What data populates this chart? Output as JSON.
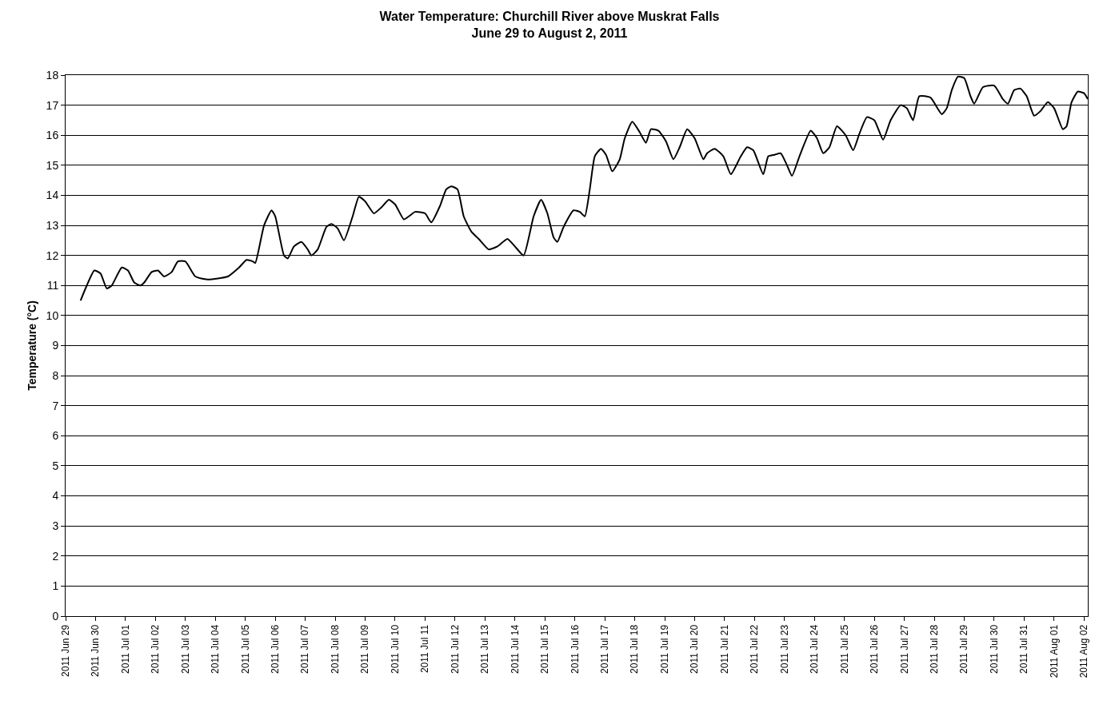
{
  "chart_data": {
    "type": "line",
    "title": "Water Temperature: Churchill River above Muskrat Falls",
    "subtitle": "June 29 to August 2, 2011",
    "ylabel": "Temperature (°C)",
    "x": [
      "2011-06-29T12:00",
      "2011-06-29T17:00",
      "2011-06-29T23:00",
      "2011-06-30T04:00",
      "2011-06-30T09:00",
      "2011-06-30T13:00",
      "2011-06-30T21:00",
      "2011-07-01T02:00",
      "2011-07-01T07:00",
      "2011-07-01T12:00",
      "2011-07-01T15:00",
      "2011-07-01T21:00",
      "2011-07-02T02:00",
      "2011-07-02T07:00",
      "2011-07-02T13:00",
      "2011-07-02T18:00",
      "2011-07-03T00:00",
      "2011-07-03T08:00",
      "2011-07-03T18:00",
      "2011-07-04T10:00",
      "2011-07-04T19:00",
      "2011-07-05T01:00",
      "2011-07-05T06:00",
      "2011-07-05T08:00",
      "2011-07-05T15:00",
      "2011-07-05T21:00",
      "2011-07-06T00:00",
      "2011-07-06T07:00",
      "2011-07-06T10:00",
      "2011-07-06T15:00",
      "2011-07-06T21:00",
      "2011-07-07T02:00",
      "2011-07-07T05:00",
      "2011-07-07T10:00",
      "2011-07-07T17:00",
      "2011-07-07T21:00",
      "2011-07-08T02:00",
      "2011-07-08T07:00",
      "2011-07-08T14:00",
      "2011-07-08T19:00",
      "2011-07-09T00:00",
      "2011-07-09T07:00",
      "2011-07-09T13:00",
      "2011-07-09T19:00",
      "2011-07-10T00:00",
      "2011-07-10T07:00",
      "2011-07-10T11:00",
      "2011-07-10T16:00",
      "2011-07-11T00:00",
      "2011-07-11T05:00",
      "2011-07-11T12:00",
      "2011-07-11T17:00",
      "2011-07-11T21:00",
      "2011-07-12T02:00",
      "2011-07-12T07:00",
      "2011-07-12T13:00",
      "2011-07-12T19:00",
      "2011-07-13T03:00",
      "2011-07-13T10:00",
      "2011-07-13T18:00",
      "2011-07-14T00:00",
      "2011-07-14T07:00",
      "2011-07-14T15:00",
      "2011-07-14T21:00",
      "2011-07-15T02:00",
      "2011-07-15T07:00",
      "2011-07-15T10:00",
      "2011-07-15T15:00",
      "2011-07-15T23:00",
      "2011-07-16T04:00",
      "2011-07-16T08:00",
      "2011-07-16T12:00",
      "2011-07-16T16:00",
      "2011-07-16T21:00",
      "2011-07-17T01:00",
      "2011-07-17T06:00",
      "2011-07-17T12:00",
      "2011-07-17T16:00",
      "2011-07-17T22:00",
      "2011-07-18T04:00",
      "2011-07-18T09:00",
      "2011-07-18T13:00",
      "2011-07-18T19:00",
      "2011-07-19T01:00",
      "2011-07-19T07:00",
      "2011-07-19T12:00",
      "2011-07-19T18:00",
      "2011-07-20T00:00",
      "2011-07-20T07:00",
      "2011-07-20T10:00",
      "2011-07-20T16:00",
      "2011-07-20T23:00",
      "2011-07-21T05:00",
      "2011-07-21T13:00",
      "2011-07-21T18:00",
      "2011-07-21T23:00",
      "2011-07-22T07:00",
      "2011-07-22T11:00",
      "2011-07-22T16:00",
      "2011-07-22T21:00",
      "2011-07-23T02:00",
      "2011-07-23T06:00",
      "2011-07-23T12:00",
      "2011-07-23T21:00",
      "2011-07-24T02:00",
      "2011-07-24T07:00",
      "2011-07-24T12:00",
      "2011-07-24T18:00",
      "2011-07-25T01:00",
      "2011-07-25T07:00",
      "2011-07-25T12:00",
      "2011-07-25T18:00",
      "2011-07-26T00:00",
      "2011-07-26T07:00",
      "2011-07-26T13:00",
      "2011-07-26T21:00",
      "2011-07-27T02:00",
      "2011-07-27T07:00",
      "2011-07-27T12:00",
      "2011-07-27T21:00",
      "2011-07-28T06:00",
      "2011-07-28T10:00",
      "2011-07-28T14:00",
      "2011-07-28T19:00",
      "2011-07-29T00:00",
      "2011-07-29T05:00",
      "2011-07-29T08:00",
      "2011-07-29T15:00",
      "2011-07-30T00:00",
      "2011-07-30T07:00",
      "2011-07-30T11:00",
      "2011-07-30T16:00",
      "2011-07-30T21:00",
      "2011-07-31T02:00",
      "2011-07-31T08:00",
      "2011-07-31T13:00",
      "2011-07-31T19:00",
      "2011-08-01T00:00",
      "2011-08-01T07:00",
      "2011-08-01T10:00",
      "2011-08-01T14:00",
      "2011-08-01T19:00",
      "2011-08-02T00:00",
      "2011-08-02T03:00"
    ],
    "series": [
      {
        "color": "#000000",
        "values": [
          10.5,
          11.0,
          11.5,
          11.4,
          10.9,
          11.0,
          11.6,
          11.5,
          11.1,
          11.0,
          11.1,
          11.45,
          11.5,
          11.3,
          11.45,
          11.8,
          11.8,
          11.3,
          11.2,
          11.3,
          11.6,
          11.85,
          11.8,
          11.75,
          13.0,
          13.5,
          13.3,
          12.0,
          11.9,
          12.3,
          12.45,
          12.2,
          12.0,
          12.2,
          12.95,
          13.05,
          12.9,
          12.5,
          13.3,
          13.95,
          13.8,
          13.4,
          13.6,
          13.85,
          13.7,
          13.2,
          13.3,
          13.45,
          13.4,
          13.1,
          13.65,
          14.2,
          14.3,
          14.2,
          13.3,
          12.8,
          12.55,
          12.2,
          12.3,
          12.55,
          12.3,
          12.0,
          13.3,
          13.85,
          13.4,
          12.6,
          12.45,
          12.95,
          13.5,
          13.45,
          13.3,
          14.2,
          15.3,
          15.55,
          15.35,
          14.8,
          15.2,
          15.9,
          16.45,
          16.1,
          15.75,
          16.2,
          16.15,
          15.8,
          15.2,
          15.6,
          16.2,
          15.9,
          15.2,
          15.4,
          15.55,
          15.3,
          14.7,
          15.3,
          15.6,
          15.5,
          14.7,
          15.3,
          15.35,
          15.4,
          15.0,
          14.65,
          15.3,
          16.15,
          15.9,
          15.4,
          15.6,
          16.3,
          16.0,
          15.5,
          16.05,
          16.6,
          16.5,
          15.85,
          16.5,
          17.0,
          16.9,
          16.5,
          17.3,
          17.25,
          16.7,
          16.9,
          17.5,
          17.95,
          17.9,
          17.3,
          17.05,
          17.6,
          17.65,
          17.2,
          17.05,
          17.5,
          17.55,
          17.3,
          16.65,
          16.8,
          17.1,
          16.9,
          16.2,
          16.3,
          17.1,
          17.45,
          17.4,
          17.2
        ]
      }
    ],
    "xlim": [
      "2011-06-29T00:00",
      "2011-08-02T03:00"
    ],
    "xticks": [
      {
        "value": "2011-06-29",
        "label": "2011 Jun 29"
      },
      {
        "value": "2011-06-30",
        "label": "2011 Jun 30"
      },
      {
        "value": "2011-07-01",
        "label": "2011 Jul 01"
      },
      {
        "value": "2011-07-02",
        "label": "2011 Jul 02"
      },
      {
        "value": "2011-07-03",
        "label": "2011 Jul 03"
      },
      {
        "value": "2011-07-04",
        "label": "2011 Jul 04"
      },
      {
        "value": "2011-07-05",
        "label": "2011 Jul 05"
      },
      {
        "value": "2011-07-06",
        "label": "2011 Jul 06"
      },
      {
        "value": "2011-07-07",
        "label": "2011 Jul 07"
      },
      {
        "value": "2011-07-08",
        "label": "2011 Jul 08"
      },
      {
        "value": "2011-07-09",
        "label": "2011 Jul 09"
      },
      {
        "value": "2011-07-10",
        "label": "2011 Jul 10"
      },
      {
        "value": "2011-07-11",
        "label": "2011 Jul 11"
      },
      {
        "value": "2011-07-12",
        "label": "2011 Jul 12"
      },
      {
        "value": "2011-07-13",
        "label": "2011 Jul 13"
      },
      {
        "value": "2011-07-14",
        "label": "2011 Jul 14"
      },
      {
        "value": "2011-07-15",
        "label": "2011 Jul 15"
      },
      {
        "value": "2011-07-16",
        "label": "2011 Jul 16"
      },
      {
        "value": "2011-07-17",
        "label": "2011 Jul 17"
      },
      {
        "value": "2011-07-18",
        "label": "2011 Jul 18"
      },
      {
        "value": "2011-07-19",
        "label": "2011 Jul 19"
      },
      {
        "value": "2011-07-20",
        "label": "2011 Jul 20"
      },
      {
        "value": "2011-07-21",
        "label": "2011 Jul 21"
      },
      {
        "value": "2011-07-22",
        "label": "2011 Jul 22"
      },
      {
        "value": "2011-07-23",
        "label": "2011 Jul 23"
      },
      {
        "value": "2011-07-24",
        "label": "2011 Jul 24"
      },
      {
        "value": "2011-07-25",
        "label": "2011 Jul 25"
      },
      {
        "value": "2011-07-26",
        "label": "2011 Jul 26"
      },
      {
        "value": "2011-07-27",
        "label": "2011 Jul 27"
      },
      {
        "value": "2011-07-28",
        "label": "2011 Jul 28"
      },
      {
        "value": "2011-07-29",
        "label": "2011 Jul 29"
      },
      {
        "value": "2011-07-30",
        "label": "2011 Jul 30"
      },
      {
        "value": "2011-07-31",
        "label": "2011 Jul 31"
      },
      {
        "value": "2011-08-01",
        "label": "2011 Aug 01"
      },
      {
        "value": "2011-08-02",
        "label": "2011 Aug 02"
      }
    ],
    "ylim": [
      0,
      18
    ],
    "yticks": [
      0,
      1,
      2,
      3,
      4,
      5,
      6,
      7,
      8,
      9,
      10,
      11,
      12,
      13,
      14,
      15,
      16,
      17,
      18
    ],
    "grid": "y",
    "marker": "none",
    "line_style": "solid"
  }
}
